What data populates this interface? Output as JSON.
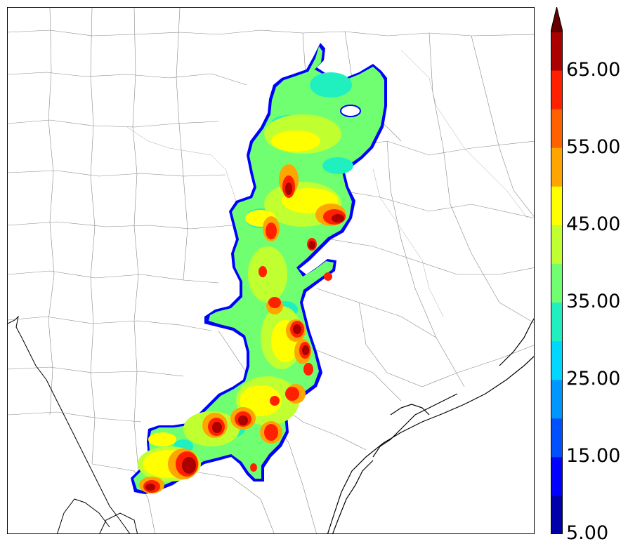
{
  "colorbar": {
    "labels": [
      "65.00",
      "55.00",
      "45.00",
      "35.00",
      "25.00",
      "15.00",
      "5.00"
    ],
    "levels": [
      5,
      10,
      15,
      20,
      25,
      30,
      35,
      40,
      45,
      50,
      55,
      60,
      65,
      70
    ],
    "colors": [
      "#0000aa",
      "#0000ff",
      "#0050ff",
      "#0096ff",
      "#00d8ff",
      "#20f0c0",
      "#70ff70",
      "#c0ff30",
      "#ffff00",
      "#ffa500",
      "#ff6000",
      "#ff2000",
      "#aa0000",
      "#660000"
    ],
    "extend": "max"
  }
}
